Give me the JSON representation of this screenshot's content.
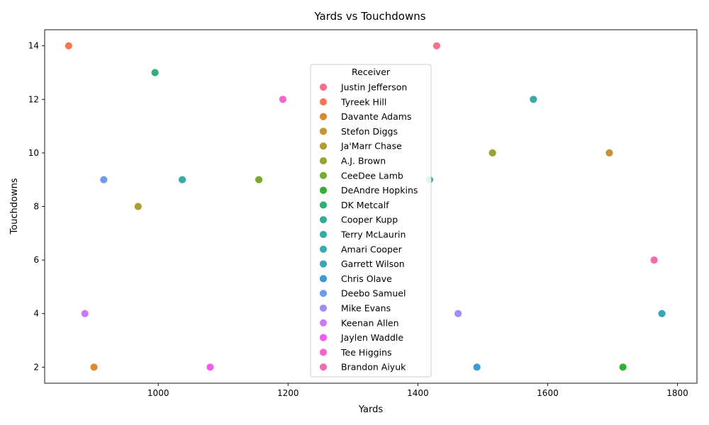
{
  "chart_data": {
    "type": "scatter",
    "title": "Yards vs Touchdowns",
    "xlabel": "Yards",
    "ylabel": "Touchdowns",
    "xlim": [
      825,
      1830
    ],
    "ylim": [
      1.4,
      14.6
    ],
    "xticks": [
      1000,
      1200,
      1400,
      1600,
      1800
    ],
    "yticks": [
      2,
      4,
      6,
      8,
      10,
      12,
      14
    ],
    "grid": false,
    "legend": {
      "title": "Receiver",
      "placement": "center"
    },
    "series": [
      {
        "name": "Justin Jefferson",
        "color": "#f77189",
        "x": 1429,
        "y": 14
      },
      {
        "name": "Tyreek Hill",
        "color": "#f7754f",
        "x": 862,
        "y": 14
      },
      {
        "name": "Davante Adams",
        "color": "#dc8932",
        "x": 901,
        "y": 2
      },
      {
        "name": "Stefon Diggs",
        "color": "#c39532",
        "x": 1695,
        "y": 10
      },
      {
        "name": "Ja'Marr Chase",
        "color": "#ae9d31",
        "x": 969,
        "y": 8
      },
      {
        "name": "A.J. Brown",
        "color": "#97a431",
        "x": 1515,
        "y": 10
      },
      {
        "name": "CeeDee Lamb",
        "color": "#77ab31",
        "x": 1155,
        "y": 9
      },
      {
        "name": "DeAndre Hopkins",
        "color": "#33b033",
        "x": 1716,
        "y": 2
      },
      {
        "name": "DK Metcalf",
        "color": "#33ae7a",
        "x": 995,
        "y": 13
      },
      {
        "name": "Cooper Kupp",
        "color": "#35ac98",
        "x": 1418,
        "y": 9
      },
      {
        "name": "Terry McLaurin",
        "color": "#36ada4",
        "x": 1037,
        "y": 9
      },
      {
        "name": "Amari Cooper",
        "color": "#38aaac",
        "x": 1578,
        "y": 12
      },
      {
        "name": "Garrett Wilson",
        "color": "#3ba3bc",
        "x": 1776,
        "y": 4
      },
      {
        "name": "Chris Olave",
        "color": "#3d9ad6",
        "x": 1491,
        "y": 2
      },
      {
        "name": "Deebo Samuel",
        "color": "#6e9af4",
        "x": 916,
        "y": 9
      },
      {
        "name": "Mike Evans",
        "color": "#a38cf4",
        "x": 1462,
        "y": 4
      },
      {
        "name": "Keenan Allen",
        "color": "#cc7af4",
        "x": 887,
        "y": 4
      },
      {
        "name": "Jaylen Waddle",
        "color": "#f45cf2",
        "x": 1080,
        "y": 2
      },
      {
        "name": "Tee Higgins",
        "color": "#f565cc",
        "x": 1192,
        "y": 12
      },
      {
        "name": "Brandon Aiyuk",
        "color": "#f66bad",
        "x": 1764,
        "y": 6
      }
    ]
  }
}
